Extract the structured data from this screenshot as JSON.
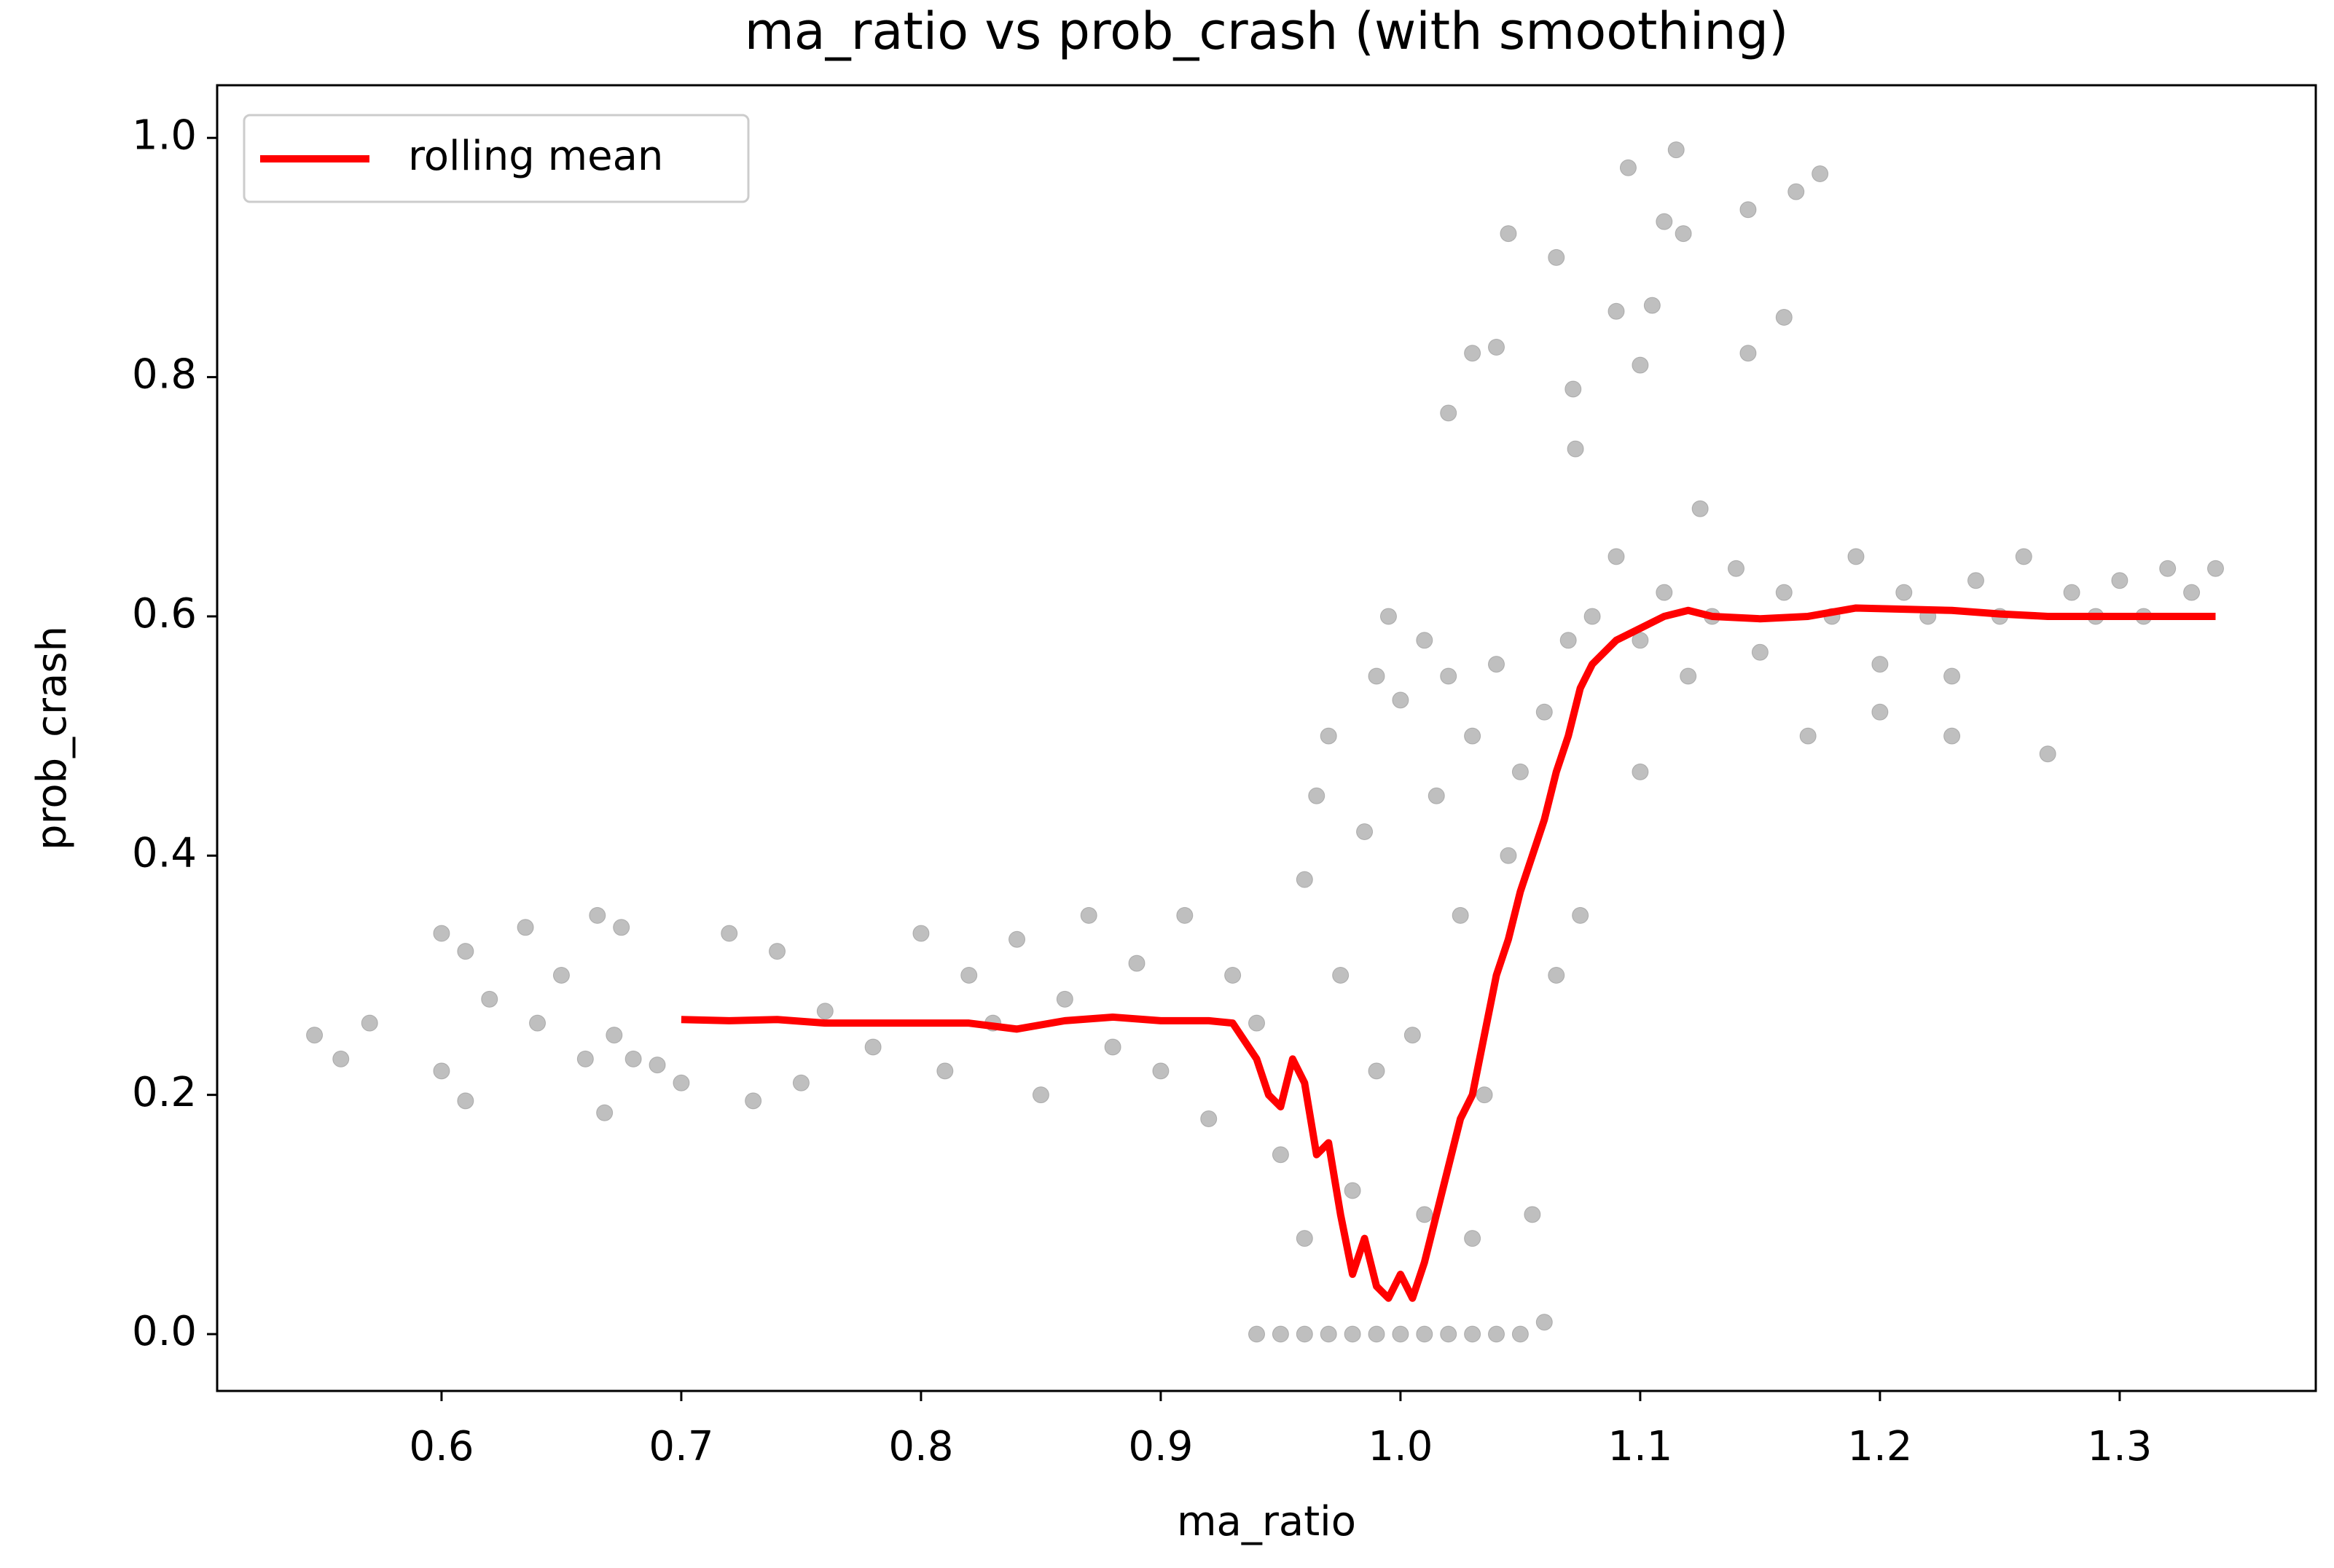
{
  "chart_data": {
    "type": "scatter",
    "title": "ma_ratio vs prob_crash (with smoothing)",
    "x_label": "ma_ratio",
    "y_label": "prob_crash",
    "xlim": [
      0.5064,
      1.3818
    ],
    "ylim": [
      -0.0475,
      1.044
    ],
    "xticks": [
      {
        "value": 0.6,
        "label": "0.6"
      },
      {
        "value": 0.7,
        "label": "0.7"
      },
      {
        "value": 0.8,
        "label": "0.8"
      },
      {
        "value": 0.9,
        "label": "0.9"
      },
      {
        "value": 1.0,
        "label": "1.0"
      },
      {
        "value": 1.1,
        "label": "1.1"
      },
      {
        "value": 1.2,
        "label": "1.2"
      },
      {
        "value": 1.3,
        "label": "1.3"
      }
    ],
    "yticks": [
      {
        "value": 0,
        "label": "0.0"
      },
      {
        "value": 0.2,
        "label": "0.2"
      },
      {
        "value": 0.4,
        "label": "0.4"
      },
      {
        "value": 0.6,
        "label": "0.6"
      },
      {
        "value": 0.8,
        "label": "0.8"
      },
      {
        "value": 1.0,
        "label": "1.0"
      }
    ],
    "legend": "upper left",
    "series": [
      {
        "type": "scatter",
        "color": "#808080",
        "x": [
          0.547,
          0.558,
          0.57,
          0.6,
          0.61,
          0.6,
          0.61,
          0.62,
          0.635,
          0.64,
          0.65,
          0.66,
          0.665,
          0.668,
          0.672,
          0.675,
          0.68,
          0.69,
          0.7,
          0.72,
          0.73,
          0.74,
          0.75,
          0.76,
          0.78,
          0.8,
          0.81,
          0.82,
          0.83,
          0.84,
          0.85,
          0.86,
          0.87,
          0.88,
          0.89,
          0.9,
          0.91,
          0.92,
          0.93,
          0.94,
          0.94,
          0.95,
          0.96,
          0.97,
          0.98,
          0.99,
          1.0,
          1.01,
          1.02,
          1.03,
          1.04,
          1.05,
          1.06,
          0.95,
          0.96,
          0.965,
          0.97,
          0.975,
          0.98,
          0.985,
          0.99,
          0.995,
          1.0,
          1.005,
          1.01,
          1.015,
          1.02,
          1.025,
          1.03,
          1.035,
          1.04,
          1.045,
          1.05,
          1.055,
          1.06,
          1.065,
          1.07,
          1.075,
          0.96,
          0.99,
          1.01,
          1.03,
          1.02,
          1.03,
          1.04,
          1.045,
          1.065,
          1.072,
          1.073,
          1.09,
          1.095,
          1.1,
          1.105,
          1.11,
          1.115,
          1.118,
          1.145,
          1.145,
          1.16,
          1.165,
          1.175,
          1.08,
          1.09,
          1.1,
          1.11,
          1.12,
          1.125,
          1.13,
          1.14,
          1.15,
          1.16,
          1.17,
          1.18,
          1.19,
          1.2,
          1.21,
          1.22,
          1.23,
          1.24,
          1.25,
          1.26,
          1.27,
          1.28,
          1.29,
          1.3,
          1.31,
          1.32,
          1.33,
          1.34,
          1.1,
          1.2,
          1.23
        ],
        "values": [
          0.25,
          0.23,
          0.26,
          0.335,
          0.32,
          0.22,
          0.195,
          0.28,
          0.34,
          0.26,
          0.3,
          0.23,
          0.35,
          0.185,
          0.25,
          0.34,
          0.23,
          0.225,
          0.21,
          0.335,
          0.195,
          0.32,
          0.21,
          0.27,
          0.24,
          0.335,
          0.22,
          0.3,
          0.26,
          0.33,
          0.2,
          0.28,
          0.35,
          0.24,
          0.31,
          0.22,
          0.35,
          0.18,
          0.3,
          0.26,
          0.0,
          0.0,
          0.0,
          0.0,
          0.0,
          0.0,
          0.0,
          0.0,
          0.0,
          0.0,
          0.0,
          0.0,
          0.01,
          0.15,
          0.38,
          0.45,
          0.5,
          0.3,
          0.12,
          0.42,
          0.55,
          0.6,
          0.53,
          0.25,
          0.58,
          0.45,
          0.55,
          0.35,
          0.5,
          0.2,
          0.56,
          0.4,
          0.47,
          0.1,
          0.52,
          0.3,
          0.58,
          0.35,
          0.08,
          0.22,
          0.1,
          0.08,
          0.77,
          0.82,
          0.825,
          0.92,
          0.9,
          0.79,
          0.74,
          0.855,
          0.975,
          0.81,
          0.86,
          0.93,
          0.99,
          0.92,
          0.94,
          0.82,
          0.85,
          0.955,
          0.97,
          0.6,
          0.65,
          0.58,
          0.62,
          0.55,
          0.69,
          0.6,
          0.64,
          0.57,
          0.62,
          0.5,
          0.6,
          0.65,
          0.56,
          0.62,
          0.6,
          0.55,
          0.63,
          0.6,
          0.65,
          0.485,
          0.62,
          0.6,
          0.63,
          0.6,
          0.64,
          0.62,
          0.64,
          0.47,
          0.52,
          0.5
        ]
      },
      {
        "type": "line",
        "name": "rolling mean",
        "color": "#ff0000",
        "x": [
          0.7,
          0.72,
          0.74,
          0.76,
          0.78,
          0.8,
          0.82,
          0.84,
          0.86,
          0.88,
          0.9,
          0.92,
          0.93,
          0.94,
          0.945,
          0.95,
          0.955,
          0.96,
          0.965,
          0.97,
          0.975,
          0.98,
          0.985,
          0.99,
          0.995,
          1.0,
          1.005,
          1.01,
          1.015,
          1.02,
          1.025,
          1.03,
          1.035,
          1.04,
          1.045,
          1.05,
          1.055,
          1.06,
          1.065,
          1.07,
          1.075,
          1.08,
          1.09,
          1.1,
          1.11,
          1.12,
          1.13,
          1.15,
          1.17,
          1.19,
          1.21,
          1.23,
          1.25,
          1.27,
          1.3,
          1.34
        ],
        "values": [
          0.263,
          0.262,
          0.263,
          0.26,
          0.26,
          0.26,
          0.26,
          0.255,
          0.262,
          0.265,
          0.262,
          0.262,
          0.26,
          0.23,
          0.2,
          0.19,
          0.23,
          0.21,
          0.15,
          0.16,
          0.1,
          0.05,
          0.08,
          0.04,
          0.03,
          0.05,
          0.03,
          0.06,
          0.1,
          0.14,
          0.18,
          0.2,
          0.25,
          0.3,
          0.33,
          0.37,
          0.4,
          0.43,
          0.47,
          0.5,
          0.54,
          0.56,
          0.58,
          0.59,
          0.6,
          0.605,
          0.6,
          0.598,
          0.6,
          0.607,
          0.606,
          0.605,
          0.602,
          0.6,
          0.6,
          0.6
        ]
      }
    ]
  }
}
